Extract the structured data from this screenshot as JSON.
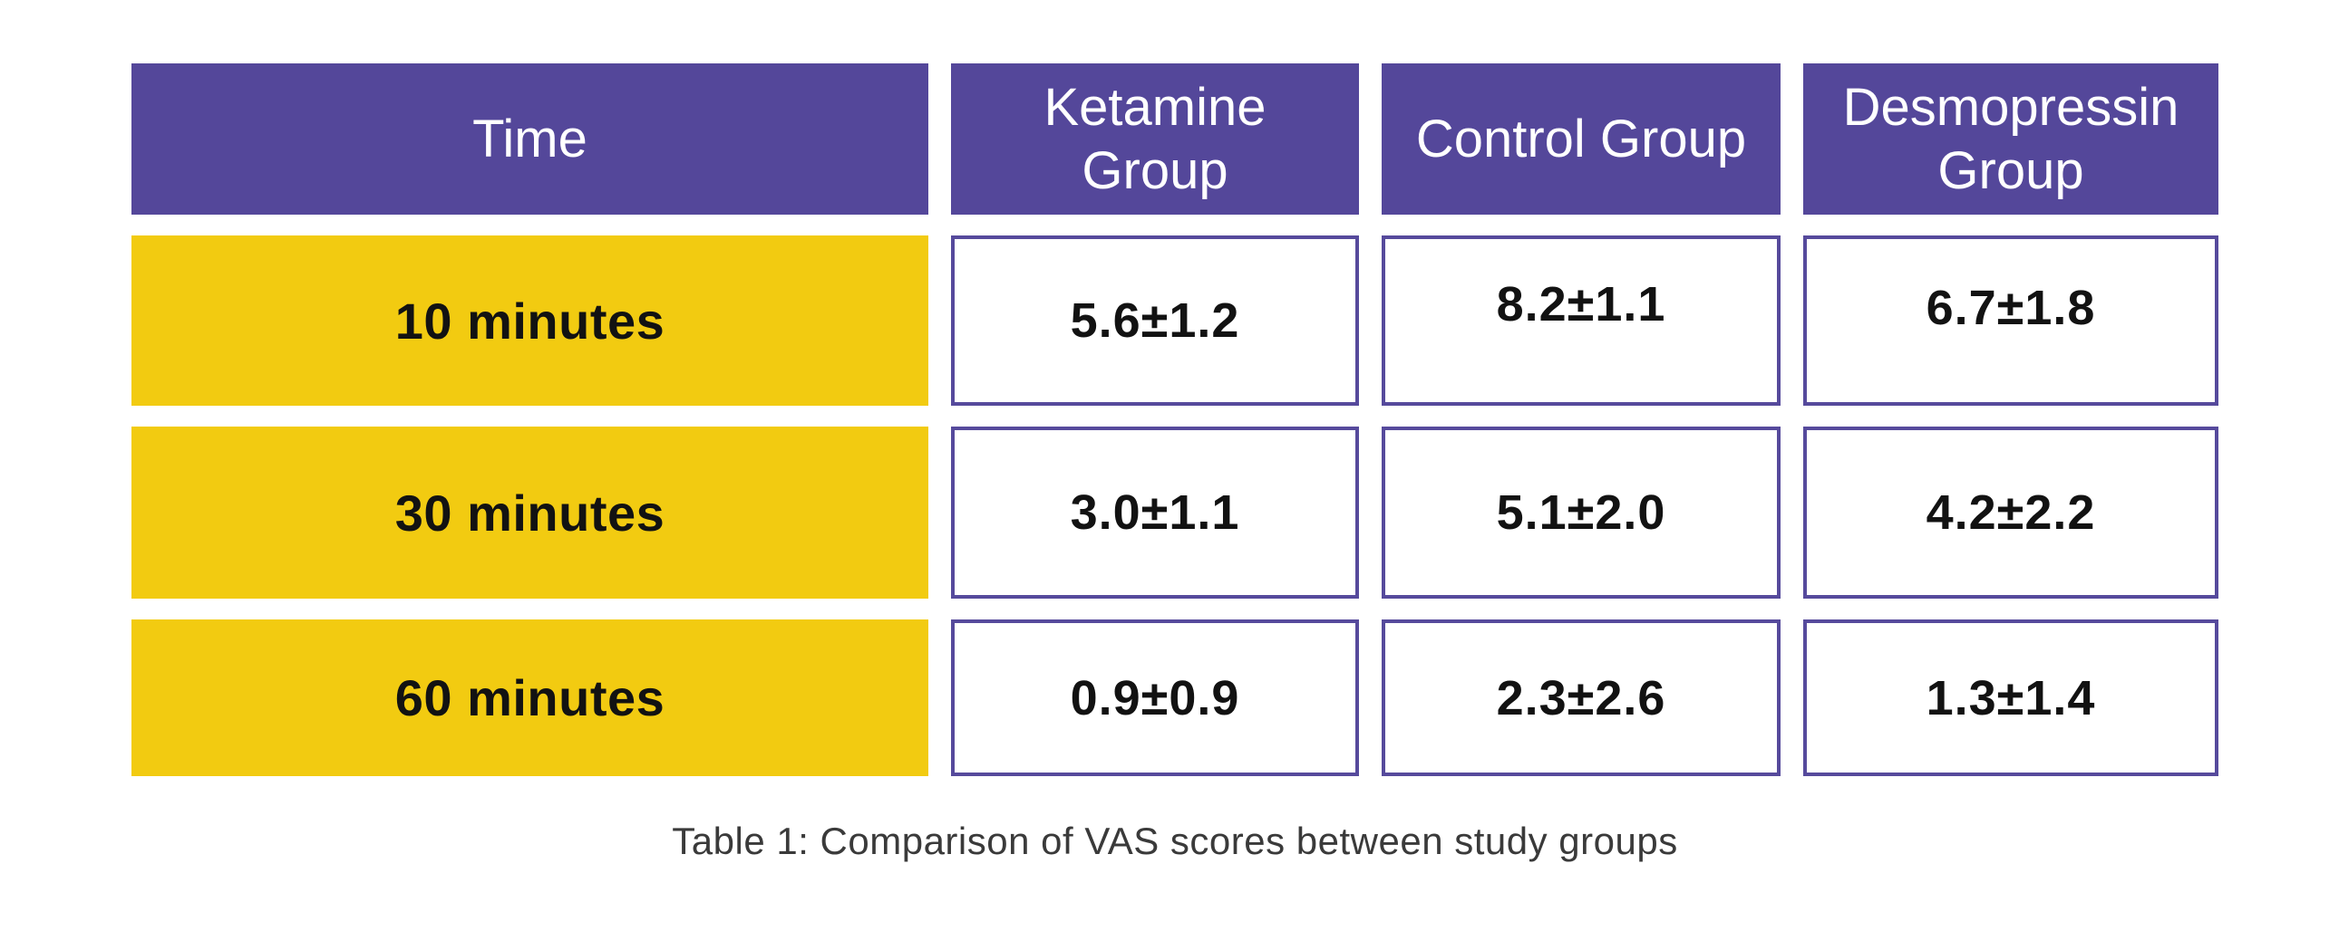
{
  "table": {
    "columns": [
      {
        "label": "Time"
      },
      {
        "label": "Ketamine\nGroup"
      },
      {
        "label": "Control Group"
      },
      {
        "label": "Desmopressin\nGroup"
      }
    ],
    "rows": [
      {
        "time": "10 minutes",
        "ketamine": "5.6±1.2",
        "control": "8.2±1.1",
        "desmopressin": "6.7±1.8"
      },
      {
        "time": "30 minutes",
        "ketamine": "3.0±1.1",
        "control": "5.1±2.0",
        "desmopressin": "4.2±2.2"
      },
      {
        "time": "60 minutes",
        "ketamine": "0.9±0.9",
        "control": "2.3±2.6",
        "desmopressin": "1.3±1.4"
      }
    ],
    "caption": "Table 1: Comparison of VAS scores between study groups"
  },
  "colors": {
    "page_bg": "#FFFFFF",
    "header_bg": "#54479A",
    "header_text": "#FFFFFF",
    "time_cell_bg": "#F2CB11",
    "cell_border": "#564A9C",
    "body_text": "#121212",
    "caption_text": "#3A3A3A"
  },
  "chart_data": {
    "type": "table",
    "title": "Table 1: Comparison of VAS scores between study groups",
    "columns": [
      "Time",
      "Ketamine Group",
      "Control Group",
      "Desmopressin Group"
    ],
    "categories": [
      "10 minutes",
      "30 minutes",
      "60 minutes"
    ],
    "rows": [
      [
        "10 minutes",
        "5.6±1.2",
        "8.2±1.1",
        "6.7±1.8"
      ],
      [
        "30 minutes",
        "3.0±1.1",
        "5.1±2.0",
        "4.2±2.2"
      ],
      [
        "60 minutes",
        "0.9±0.9",
        "2.3±2.6",
        "1.3±1.4"
      ]
    ],
    "series": [
      {
        "name": "Ketamine Group",
        "mean": [
          5.6,
          3.0,
          0.9
        ],
        "sd": [
          1.2,
          1.1,
          0.9
        ]
      },
      {
        "name": "Control Group",
        "mean": [
          8.2,
          5.1,
          2.3
        ],
        "sd": [
          1.1,
          2.0,
          2.6
        ]
      },
      {
        "name": "Desmopressin Group",
        "mean": [
          6.7,
          4.2,
          1.3
        ],
        "sd": [
          1.8,
          2.2,
          1.4
        ]
      }
    ],
    "value_unit": "VAS score (mean ± SD)"
  }
}
